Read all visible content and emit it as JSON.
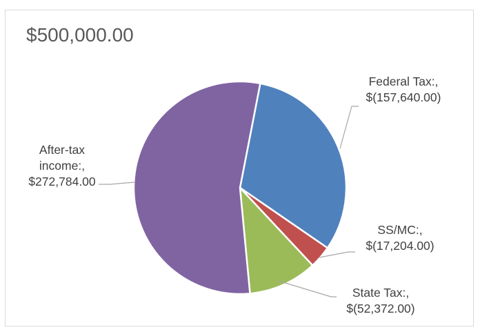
{
  "chart_data": {
    "type": "pie",
    "title": "$500,000.00",
    "slices": [
      {
        "name": "Federal Tax:",
        "value": 157640,
        "label_lines": [
          "Federal Tax:,",
          "$(157,640.00)"
        ],
        "color": "#4f81bd"
      },
      {
        "name": "SS/MC:",
        "value": 17204,
        "label_lines": [
          "SS/MC:,",
          "$(17,204.00)"
        ],
        "color": "#c0504d"
      },
      {
        "name": "State Tax:",
        "value": 52372,
        "label_lines": [
          "State Tax:,",
          "$(52,372.00)"
        ],
        "color": "#9bbb59"
      },
      {
        "name": "After-tax income:",
        "value": 272784,
        "label_lines": [
          "After-tax",
          "income:,",
          "$272,784.00"
        ],
        "color": "#8064a2"
      }
    ],
    "legend": "none",
    "data_labels": "outside with leader lines"
  }
}
